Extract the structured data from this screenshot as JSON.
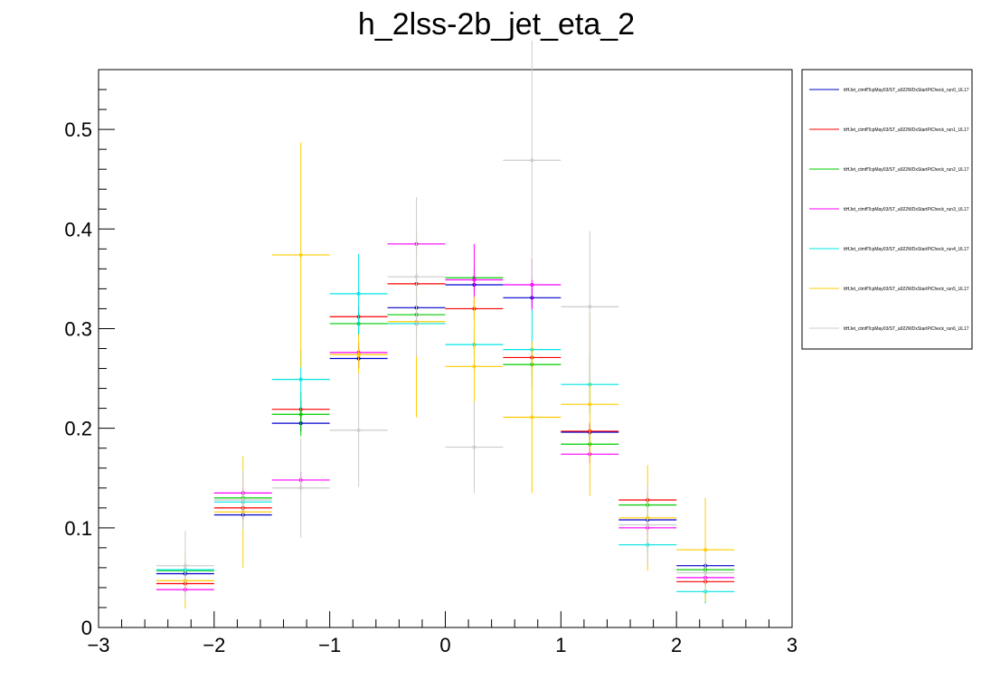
{
  "chart_data": {
    "type": "scatter",
    "title": "h_2lss-2b_jet_eta_2",
    "xlabel": "",
    "ylabel": "",
    "xlim": [
      -3,
      3
    ],
    "ylim": [
      0,
      0.56
    ],
    "x_ticks": [
      "−3",
      "−2",
      "−1",
      "0",
      "1",
      "2",
      "3"
    ],
    "y_ticks": [
      "0",
      "0.1",
      "0.2",
      "0.3",
      "0.4",
      "0.5"
    ],
    "bin_edges": [
      -2.5,
      -2.0,
      -1.5,
      -1.0,
      -0.5,
      0.0,
      0.5,
      1.0,
      1.5,
      2.0,
      2.5
    ],
    "legend_placement": "right",
    "series": [
      {
        "name": "ttHJet_ctmffTcpMay03/ST_a922WDxStartPiCheck_run0_UL17",
        "color": "#0000cc",
        "values": [
          0.054,
          0.113,
          0.205,
          0.27,
          0.321,
          0.344,
          0.331,
          0.196,
          0.108,
          0.062
        ],
        "errors": [
          0.004,
          0.005,
          0.008,
          0.01,
          0.01,
          0.01,
          0.01,
          0.008,
          0.006,
          0.004
        ]
      },
      {
        "name": "ttHJet_ctmffTcpMay03/ST_a922WDxStartPiCheck_run1_UL17",
        "color": "#ff0000",
        "values": [
          0.044,
          0.12,
          0.219,
          0.312,
          0.345,
          0.32,
          0.271,
          0.197,
          0.128,
          0.046
        ],
        "errors": [
          0.005,
          0.006,
          0.009,
          0.011,
          0.011,
          0.011,
          0.01,
          0.009,
          0.007,
          0.005
        ]
      },
      {
        "name": "ttHJet_ctmffTcpMay03/ST_a922WDxStartPiCheck_run2_UL17",
        "color": "#00cc00",
        "values": [
          0.057,
          0.13,
          0.214,
          0.305,
          0.314,
          0.351,
          0.264,
          0.184,
          0.123,
          0.058
        ],
        "errors": [
          0.005,
          0.007,
          0.022,
          0.011,
          0.011,
          0.011,
          0.01,
          0.009,
          0.007,
          0.005
        ]
      },
      {
        "name": "ttHJet_ctmffTcpMay03/ST_a922WDxStartPiCheck_run3_UL17",
        "color": "#ff00ff",
        "values": [
          0.038,
          0.135,
          0.148,
          0.276,
          0.385,
          0.349,
          0.344,
          0.174,
          0.1,
          0.05
        ],
        "errors": [
          0.004,
          0.006,
          0.008,
          0.01,
          0.012,
          0.036,
          0.026,
          0.009,
          0.007,
          0.005
        ]
      },
      {
        "name": "ttHJet_ctmffTcpMay03/ST_a922WDxStartPiCheck_run4_UL17",
        "color": "#00e5e5",
        "values": [
          0.058,
          0.126,
          0.249,
          0.335,
          0.305,
          0.284,
          0.279,
          0.244,
          0.083,
          0.036
        ],
        "errors": [
          0.005,
          0.007,
          0.03,
          0.04,
          0.011,
          0.011,
          0.04,
          0.03,
          0.007,
          0.012
        ]
      },
      {
        "name": "ttHJet_ctmffTcpMay03/ST_a922WDxStartPiCheck_run5_UL17",
        "color": "#ffcc00",
        "values": [
          0.047,
          0.116,
          0.374,
          0.274,
          0.307,
          0.262,
          0.211,
          0.224,
          0.11,
          0.078
        ],
        "errors": [
          0.028,
          0.056,
          0.113,
          0.02,
          0.096,
          0.07,
          0.076,
          0.092,
          0.053,
          0.052
        ]
      },
      {
        "name": "ttHJet_ctmffTcpMay03/ST_a922WDxStartPiCheck_run6_UL17",
        "color": "#cccccc",
        "values": [
          0.062,
          0.128,
          0.14,
          0.198,
          0.352,
          0.181,
          0.469,
          0.322,
          0.103,
          0.055
        ],
        "errors": [
          0.035,
          0.03,
          0.05,
          0.057,
          0.08,
          0.046,
          0.12,
          0.076,
          0.04,
          0.02
        ]
      }
    ]
  }
}
